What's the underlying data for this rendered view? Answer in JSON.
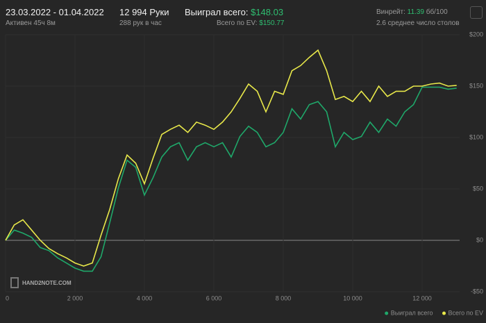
{
  "header": {
    "dates": "23.03.2022 - 01.04.2022",
    "active": "Активен 45ч 8м",
    "hands": "12 994 Руки",
    "hands_per_hour": "288 рук в час",
    "won_label": "Выиграл всего:",
    "won_value": "$148.03",
    "ev_label": "Всего по EV:",
    "ev_value": "$150.77",
    "winrate_label": "Винрейт:",
    "winrate_value": "11.39",
    "winrate_unit": "бб/100",
    "tables": "2.6 среднее число столов"
  },
  "logo": "HAND2NOTE.COM",
  "chart_data": {
    "type": "line",
    "x": [
      0,
      250,
      500,
      750,
      1000,
      1250,
      1500,
      1750,
      2000,
      2250,
      2500,
      2750,
      3000,
      3250,
      3500,
      3750,
      4000,
      4250,
      4500,
      4750,
      5000,
      5250,
      5500,
      5750,
      6000,
      6250,
      6500,
      6750,
      7000,
      7250,
      7500,
      7750,
      8000,
      8250,
      8500,
      8750,
      9000,
      9250,
      9500,
      9750,
      10000,
      10250,
      10500,
      10750,
      11000,
      11250,
      11500,
      11750,
      12000,
      12250,
      12500,
      12750,
      12994
    ],
    "series": [
      {
        "name": "Выиграл всего",
        "color": "#1fa86a",
        "values": [
          0,
          10,
          7,
          3,
          -7,
          -10,
          -17,
          -22,
          -27,
          -30,
          -30,
          -16,
          17,
          51,
          78,
          71,
          44,
          61,
          81,
          91,
          95,
          78,
          91,
          95,
          91,
          95,
          81,
          101,
          111,
          105,
          91,
          95,
          105,
          128,
          118,
          132,
          135,
          125,
          91,
          105,
          98,
          101,
          115,
          105,
          118,
          111,
          125,
          132,
          149,
          149,
          149,
          147,
          148.03
        ]
      },
      {
        "name": "Всего по EV",
        "color": "#e8e84a",
        "values": [
          0,
          15,
          20,
          10,
          0,
          -8,
          -13,
          -17,
          -22,
          -25,
          -22,
          5,
          30,
          60,
          83,
          75,
          55,
          80,
          103,
          108,
          112,
          105,
          115,
          112,
          108,
          115,
          125,
          138,
          152,
          145,
          125,
          145,
          142,
          165,
          170,
          178,
          185,
          165,
          137,
          140,
          135,
          145,
          135,
          150,
          140,
          145,
          145,
          150,
          150,
          152,
          153,
          150,
          150.77
        ]
      }
    ],
    "xlim": [
      0,
      13000
    ],
    "ylim": [
      -50,
      200
    ],
    "xticks": [
      0,
      {
        "value": 2000,
        "label": "2 000"
      },
      {
        "value": 4000,
        "label": "4 000"
      },
      {
        "value": 6000,
        "label": "6 000"
      },
      {
        "value": 8000,
        "label": "8 000"
      },
      {
        "value": 10000,
        "label": "10 000"
      },
      {
        "value": 12000,
        "label": "12 000"
      }
    ],
    "yticks": [
      {
        "value": -50,
        "label": "-$50"
      },
      {
        "value": 0,
        "label": "$0"
      },
      {
        "value": 50,
        "label": "$50"
      },
      {
        "value": 100,
        "label": "$100"
      },
      {
        "value": 150,
        "label": "$150"
      },
      {
        "value": 200,
        "label": "$200"
      }
    ],
    "grid": true,
    "legend": "bottom-right"
  }
}
